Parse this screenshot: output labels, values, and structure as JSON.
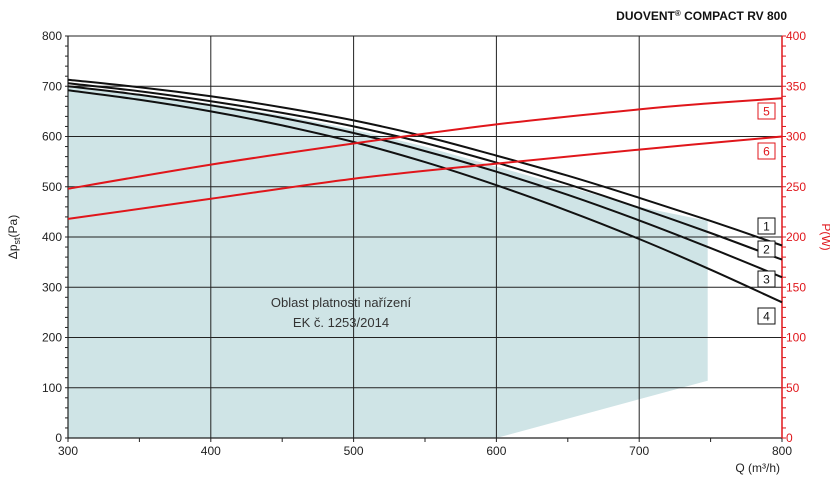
{
  "chart_data": {
    "type": "line",
    "title": "DUOVENT",
    "title_sup": "®",
    "title_rest": " COMPACT RV 800",
    "xlabel": "Q (m³/h)",
    "ylabel_left_main": "Δp",
    "ylabel_left_sub": "st",
    "ylabel_left_rest": "(Pa)",
    "ylabel_right": "P(W)",
    "xlim": [
      300,
      800
    ],
    "ylim_left": [
      0,
      800
    ],
    "ylim_right": [
      0,
      400
    ],
    "x_ticks": [
      "300",
      "400",
      "500",
      "600",
      "700",
      "800"
    ],
    "y_ticks_left": [
      "0",
      "100",
      "200",
      "300",
      "400",
      "500",
      "600",
      "700",
      "800"
    ],
    "y_ticks_right": [
      "0",
      "50",
      "100",
      "150",
      "200",
      "250",
      "300",
      "350",
      "400"
    ],
    "grid": true,
    "region_polygon": [
      [
        300,
        0
      ],
      [
        300,
        698
      ],
      [
        350,
        683
      ],
      [
        400,
        665
      ],
      [
        450,
        642
      ],
      [
        500,
        614
      ],
      [
        550,
        580
      ],
      [
        600,
        540
      ],
      [
        650,
        500
      ],
      [
        700,
        460
      ],
      [
        748,
        432
      ],
      [
        748,
        114
      ],
      [
        600,
        0
      ]
    ],
    "annotation": [
      "Oblast platnosti nařízení",
      "EK č. 1253/2014"
    ],
    "pressure_series": [
      {
        "label": "1",
        "x": [
          300,
          350,
          400,
          450,
          500,
          550,
          600,
          650,
          700,
          750,
          800
        ],
        "y": [
          713,
          698,
          680,
          658,
          632,
          600,
          562,
          522,
          478,
          432,
          383
        ]
      },
      {
        "label": "2",
        "x": [
          300,
          350,
          400,
          450,
          500,
          550,
          600,
          650,
          700,
          750,
          800
        ],
        "y": [
          706,
          690,
          670,
          647,
          620,
          587,
          548,
          505,
          458,
          408,
          355
        ]
      },
      {
        "label": "3",
        "x": [
          300,
          350,
          400,
          450,
          500,
          550,
          600,
          650,
          700,
          750,
          800
        ],
        "y": [
          700,
          683,
          662,
          637,
          607,
          571,
          530,
          484,
          433,
          378,
          320
        ]
      },
      {
        "label": "4",
        "x": [
          300,
          350,
          400,
          450,
          500,
          550,
          600,
          650,
          700,
          750,
          800
        ],
        "y": [
          692,
          673,
          650,
          622,
          589,
          549,
          503,
          452,
          396,
          335,
          270
        ]
      }
    ],
    "power_series": [
      {
        "label": "5",
        "x": [
          300,
          400,
          500,
          600,
          700,
          750,
          800
        ],
        "y": [
          248,
          272,
          293,
          312,
          327,
          333,
          338
        ]
      },
      {
        "label": "6",
        "x": [
          300,
          400,
          500,
          600,
          700,
          800
        ],
        "y": [
          218,
          238,
          258,
          273,
          287,
          300
        ]
      }
    ]
  }
}
